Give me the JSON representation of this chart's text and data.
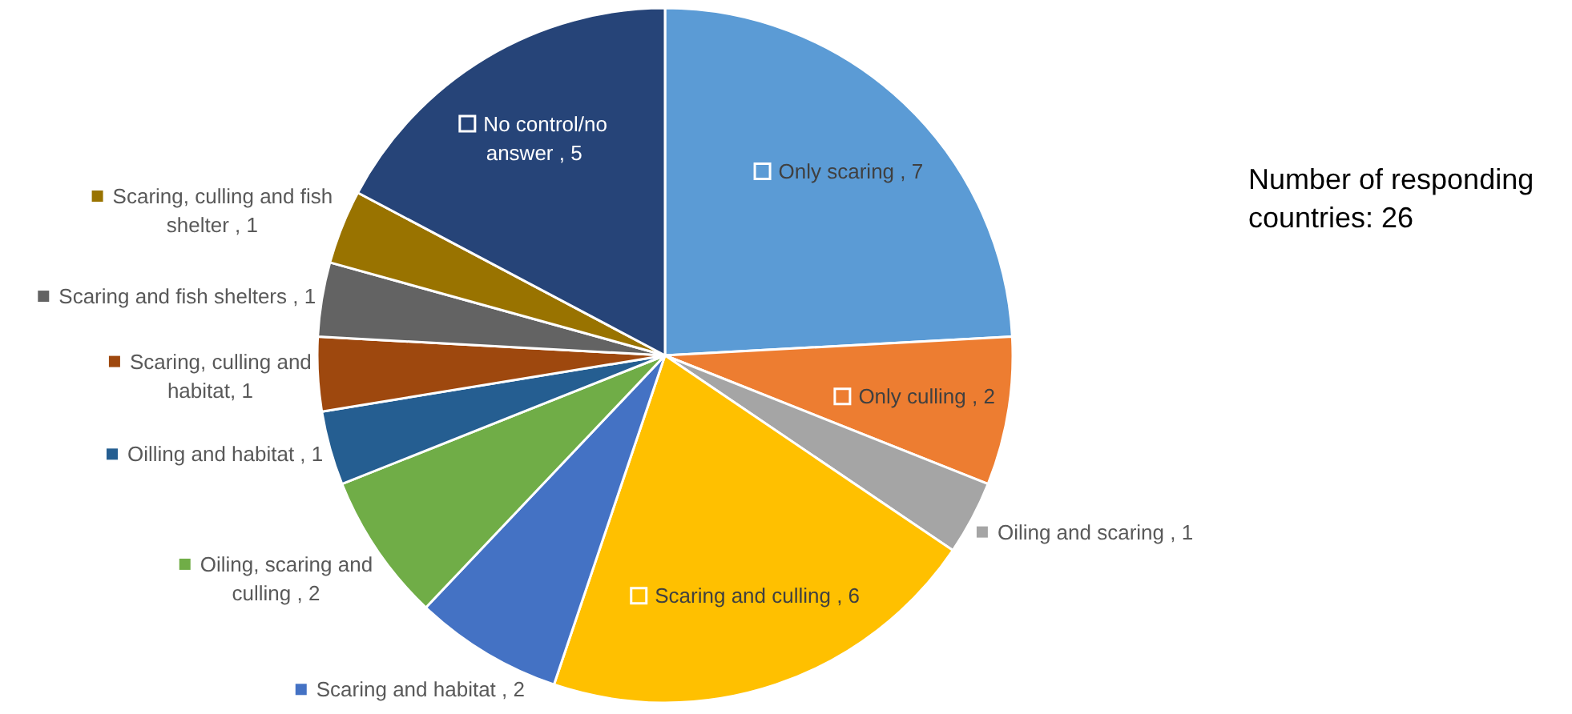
{
  "chart_data": {
    "type": "pie",
    "categories": [
      "Only scaring ",
      "Only culling ",
      "Oiling and scaring ",
      "Scaring and culling ",
      "Scaring and habitat ",
      "Oiling, scaring and culling ",
      "Oilling and habitat ",
      "Scaring, culling and habitat",
      "Scaring and fish shelters ",
      "Scaring, culling and fish shelter ",
      "No control/no answer "
    ],
    "values": [
      7,
      2,
      1,
      6,
      2,
      2,
      1,
      1,
      1,
      1,
      5
    ],
    "value_labels": [
      ", 7",
      ", 2",
      ", 1",
      ", 6",
      ", 2",
      ", 2",
      ", 1",
      ", 1",
      ", 1",
      ", 1",
      ", 5"
    ],
    "colors": [
      "#5b9bd5",
      "#ed7d31",
      "#a5a5a5",
      "#ffc000",
      "#4472c4",
      "#70ad47",
      "#255e91",
      "#9e480e",
      "#636363",
      "#997300",
      "#264478"
    ],
    "legend": "left",
    "annotations": [
      "Number of responding countries: 26"
    ]
  }
}
